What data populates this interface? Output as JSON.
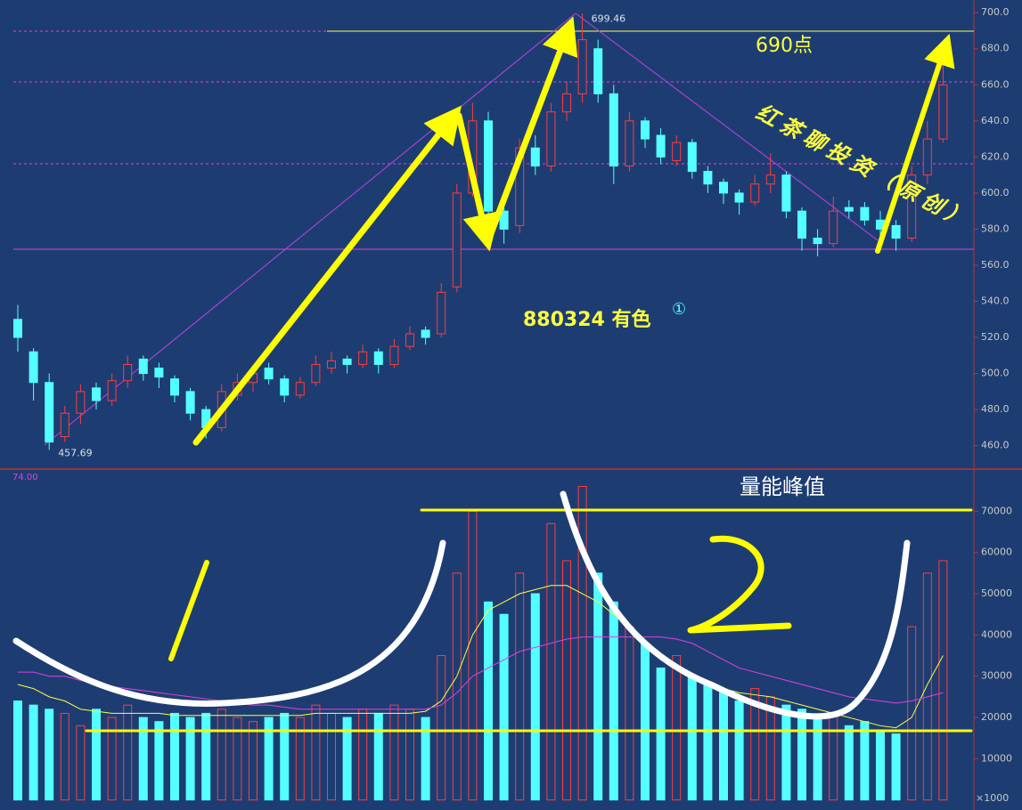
{
  "chart_data": [
    {
      "type": "candlestick",
      "ylim": [
        448,
        707
      ],
      "yticks": [
        {
          "value": 460,
          "label": "460.0"
        },
        {
          "value": 480,
          "label": "480.0"
        },
        {
          "value": 500,
          "label": "500.0"
        },
        {
          "value": 520,
          "label": "520.0"
        },
        {
          "value": 540,
          "label": "540.0"
        },
        {
          "value": 560,
          "label": "560.0"
        },
        {
          "value": 580,
          "label": "580.0"
        },
        {
          "value": 600,
          "label": "600.0"
        },
        {
          "value": 620,
          "label": "620.0"
        },
        {
          "value": 640,
          "label": "640.0"
        },
        {
          "value": 660,
          "label": "660.0"
        },
        {
          "value": 680,
          "label": "680.0"
        },
        {
          "value": 700,
          "label": "700.0"
        }
      ],
      "up_color": "#ff3c3c",
      "down_color": "#54ffff",
      "open": [
        530,
        512,
        495,
        465,
        478,
        492,
        485,
        496,
        508,
        503,
        497,
        490,
        480,
        470,
        488,
        495,
        503,
        497,
        488,
        495,
        503,
        508,
        505,
        512,
        505,
        515,
        524,
        522,
        548,
        600,
        640,
        590,
        582,
        625,
        615,
        645,
        655,
        680,
        655,
        615,
        640,
        632,
        618,
        628,
        612,
        606,
        600,
        595,
        605,
        610,
        590,
        575,
        572,
        592,
        592,
        585,
        582,
        575,
        610,
        630
      ],
      "high": [
        538,
        514,
        500,
        482,
        494,
        495,
        500,
        510,
        510,
        506,
        499,
        492,
        482,
        494,
        500,
        504,
        506,
        499,
        498,
        510,
        512,
        510,
        516,
        514,
        519,
        526,
        526,
        550,
        605,
        650,
        645,
        598,
        630,
        632,
        650,
        662,
        699.46,
        685,
        660,
        645,
        642,
        636,
        632,
        630,
        615,
        608,
        602,
        610,
        622,
        612,
        592,
        580,
        598,
        596,
        595,
        590,
        585,
        615,
        640,
        675
      ],
      "low": [
        512,
        485,
        457.69,
        462,
        472,
        480,
        482,
        492,
        496,
        492,
        484,
        474,
        464,
        468,
        485,
        490,
        494,
        484,
        486,
        493,
        500,
        500,
        503,
        500,
        503,
        513,
        516,
        520,
        545,
        598,
        585,
        572,
        578,
        610,
        612,
        640,
        650,
        650,
        605,
        612,
        625,
        616,
        615,
        608,
        600,
        594,
        588,
        593,
        600,
        586,
        568,
        565,
        570,
        586,
        582,
        576,
        568,
        573,
        605,
        628
      ],
      "close": [
        520,
        495,
        462,
        478,
        490,
        485,
        496,
        505,
        500,
        498,
        488,
        478,
        470,
        490,
        495,
        500,
        497,
        488,
        495,
        505,
        507,
        505,
        512,
        505,
        515,
        522,
        520,
        545,
        600,
        640,
        590,
        580,
        625,
        615,
        645,
        655,
        685,
        655,
        615,
        640,
        630,
        620,
        628,
        612,
        605,
        600,
        595,
        605,
        610,
        590,
        575,
        572,
        590,
        590,
        585,
        580,
        575,
        610,
        630,
        660
      ],
      "title": "880324 有色",
      "title_mark": "①",
      "annotations": [
        "690点",
        "红茶聊投资（原创）"
      ]
    },
    {
      "type": "bar",
      "ylim": [
        -2000,
        80000
      ],
      "yticks": [
        10000,
        20000,
        30000,
        40000,
        50000,
        60000,
        70000
      ],
      "corner_label": "74.00",
      "unit_label": "×1000",
      "annotation": "量能峰值",
      "values": [
        24000,
        23000,
        22000,
        21000,
        18000,
        22000,
        20000,
        23000,
        20000,
        19000,
        21000,
        20000,
        21000,
        22000,
        20000,
        19000,
        20000,
        21000,
        20000,
        23000,
        21000,
        20000,
        22000,
        21000,
        23000,
        22000,
        20000,
        35000,
        55000,
        70000,
        48000,
        45000,
        55000,
        50000,
        67000,
        58000,
        76000,
        55000,
        48000,
        42000,
        38000,
        32000,
        35000,
        30000,
        28000,
        26000,
        24000,
        27000,
        25000,
        23000,
        22000,
        20000,
        21000,
        18000,
        19000,
        17000,
        16000,
        42000,
        55000,
        58000
      ],
      "series": [
        {
          "color": "#ffff40",
          "values": [
            28000,
            27000,
            25000,
            24000,
            22000,
            21500,
            21000,
            21000,
            21000,
            21000,
            20500,
            20500,
            20500,
            20500,
            20500,
            20500,
            20500,
            20500,
            20500,
            21000,
            21000,
            21000,
            21000,
            21000,
            21000,
            21000,
            21500,
            24000,
            30000,
            40000,
            46000,
            48000,
            50000,
            51000,
            52000,
            52000,
            50000,
            48000,
            45000,
            42000,
            38000,
            34000,
            32000,
            30000,
            28000,
            27000,
            26000,
            25500,
            25000,
            24000,
            23000,
            22000,
            21000,
            20000,
            19000,
            18000,
            17500,
            20000,
            28000,
            35000
          ]
        },
        {
          "color": "#e040e0",
          "values": [
            31000,
            31000,
            30000,
            30000,
            29000,
            28000,
            27500,
            27000,
            26500,
            26000,
            25500,
            25000,
            24500,
            24000,
            23500,
            23000,
            23000,
            22500,
            22000,
            22000,
            22000,
            22000,
            22000,
            22000,
            22000,
            22000,
            22000,
            23000,
            26000,
            30000,
            32000,
            34000,
            36000,
            37000,
            38000,
            39000,
            39500,
            39500,
            39500,
            39500,
            39500,
            39500,
            39000,
            38000,
            36000,
            34000,
            32000,
            31000,
            30000,
            29000,
            28000,
            27000,
            26000,
            25000,
            24500,
            24000,
            23500,
            24000,
            25000,
            26000
          ]
        }
      ]
    }
  ]
}
